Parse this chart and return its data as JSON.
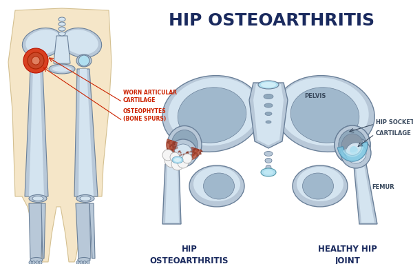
{
  "title": "HIP OSTEOARTHRITIS",
  "title_color": "#1a2a5e",
  "title_fontsize": 18,
  "title_fontweight": "bold",
  "bg_color": "#ffffff",
  "bone_color": "#b8c8d8",
  "bone_outline": "#6a8099",
  "bone_light": "#d4e4f0",
  "bone_dark": "#8fa8bc",
  "bone_mid": "#a0b8cc",
  "skin_color": "#f5e6c8",
  "skin_outline": "#d4c090",
  "cartilage_color": "#7ec8e3",
  "cartilage_light": "#b0dff0",
  "worn_cartilage_color": "#b85030",
  "inflammation_color": "#d84020",
  "osteophyte_color": "#f0f0ee",
  "label_color_red": "#cc2200",
  "label_color_dark": "#1a2a5e",
  "label_color_gray": "#3a4a5e",
  "label_left1": "WORN ARTICULAR\nCARTILAGE",
  "label_left2": "OSTEOPHYTES\n(BONE SPURS)",
  "label_pelvis": "PELVIS",
  "label_hip_socket": "HIP SOCKET",
  "label_cartilage": "CARTILAGE",
  "label_femur": "FEMUR",
  "bottom_left": "HIP\nOSTEOARTHRITIS",
  "bottom_right": "HEALTHY HIP\nJOINT"
}
